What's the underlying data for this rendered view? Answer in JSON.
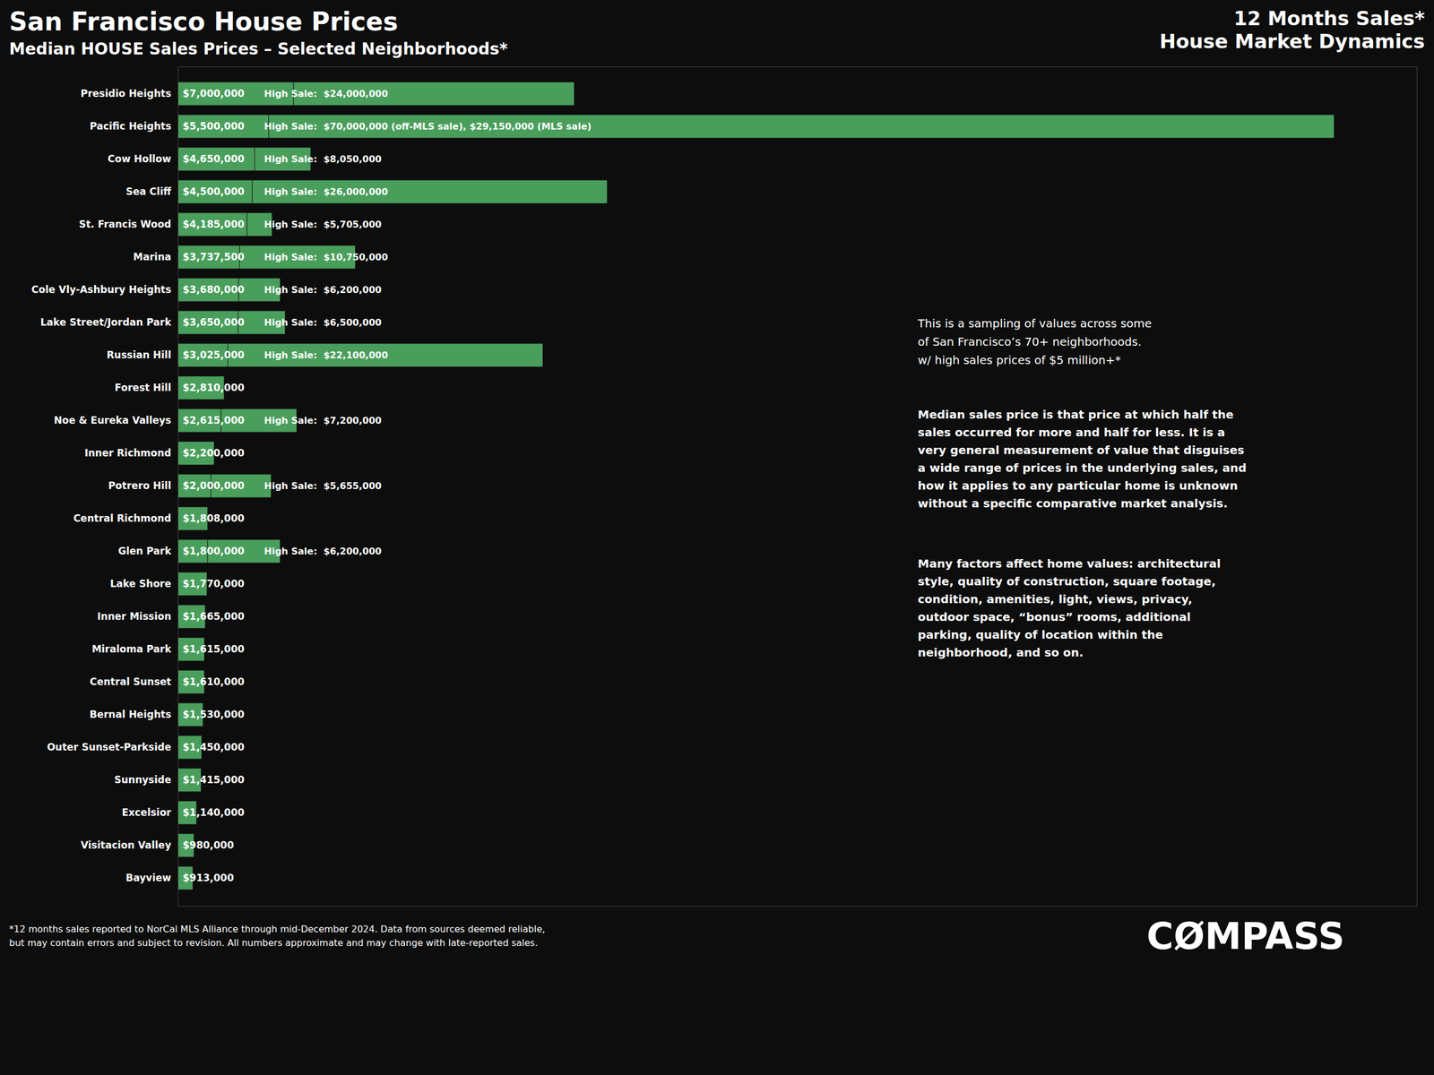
{
  "chart_data": {
    "type": "bar",
    "orientation": "horizontal",
    "title": "San Francisco House Prices",
    "subtitle": "Median HOUSE Sales Prices – Selected Neighborhoods*",
    "annotations": [
      "12 Months Sales*",
      "House Market Dynamics",
      "This is a sampling of values across some\nof San Francisco’s 70+ neighborhoods.\nw/ high sales prices of $5 million+*",
      "Median sales price is that price at which half the\nsales occurred for more and half for less. It is a\nvery general measurement of value that disguises\na wide range of prices in the underlying sales, and\nhow it applies to any particular home is unknown\nwithout a specific comparative market analysis.",
      "Many factors affect home values: architectural style, quality of construction, square footage, condition, amenities, light, views, privacy, outdoor space, “bonus” rooms, additional parking, quality of location within the neighborhood, and so on.",
      "*12 months sales reported to NorCal MLS Alliance through mid-December 2024. Data from sources deemed reliable,",
      "but may contain errors and subject to revision. All numbers approximate and may change with late-reported sales.",
      "CØMPASS"
    ],
    "categories": [
      "Presidio Heights",
      "Pacific Heights",
      "Cow Hollow",
      "Sea Cliff",
      "St. Francis Wood",
      "Marina",
      "Cole Vly-Ashbury Heights",
      "Lake Street/Jordan Park",
      "Russian Hill",
      "Forest Hill",
      "Noe & Eureka Valleys",
      "Inner Richmond",
      "Potrero Hill",
      "Central Richmond",
      "Glen Park",
      "Lake Shore",
      "Inner Mission",
      "Miraloma Park",
      "Central Sunset",
      "Bernal Heights",
      "Outer Sunset-Parkside",
      "Sunnyside",
      "Excelsior",
      "Visitacion Valley",
      "Bayview"
    ],
    "series": [
      {
        "color": "#4a9e5c",
        "values": [
          7000000,
          5500000,
          4650000,
          4500000,
          4185000,
          3737500,
          3680000,
          3650000,
          3025000,
          2810000,
          2615000,
          2200000,
          2000000,
          1808000,
          1800000,
          1770000,
          1665000,
          1615000,
          1610000,
          1530000,
          1450000,
          1415000,
          1140000,
          980000,
          913000
        ],
        "value_labels": [
          "$7,000,000",
          "$5,500,000",
          "$4,650,000",
          "$4,500,000",
          "$4,185,000",
          "$3,737,500",
          "$3,680,000",
          "$3,650,000",
          "$3,025,000",
          "$2,810,000",
          "$2,615,000",
          "$2,200,000",
          "$2,000,000",
          "$1,808,000",
          "$1,800,000",
          "$1,770,000",
          "$1,665,000",
          "$1,615,000",
          "$1,610,000",
          "$1,530,000",
          "$1,450,000",
          "$1,415,000",
          "$1,140,000",
          "$980,000",
          "$913,000"
        ]
      },
      {
        "color": "#4a9e5c",
        "values": [
          24000000,
          70000000,
          8050000,
          26000000,
          5705000,
          10750000,
          6200000,
          6500000,
          22100000,
          null,
          7200000,
          null,
          5655000,
          null,
          6200000,
          null,
          null,
          null,
          null,
          null,
          null,
          null,
          null,
          null,
          null
        ],
        "value_labels": [
          "High Sale:  $24,000,000",
          "High Sale:  $70,000,000 (off-MLS sale), $29,150,000 (MLS sale)",
          "High Sale:  $8,050,000",
          "High Sale:  $26,000,000",
          "High Sale:  $5,705,000",
          "High Sale:  $10,750,000",
          "High Sale:  $6,200,000",
          "High Sale:  $6,500,000",
          "High Sale:  $22,100,000",
          null,
          "High Sale:  $7,200,000",
          null,
          "High Sale:  $5,655,000",
          null,
          "High Sale:  $6,200,000",
          null,
          null,
          null,
          null,
          null,
          null,
          null,
          null,
          null,
          null
        ]
      }
    ],
    "xlim": [
      0,
      75000000
    ],
    "xticks": [],
    "tick_labels": "y",
    "data_labels": true,
    "grid": false
  }
}
